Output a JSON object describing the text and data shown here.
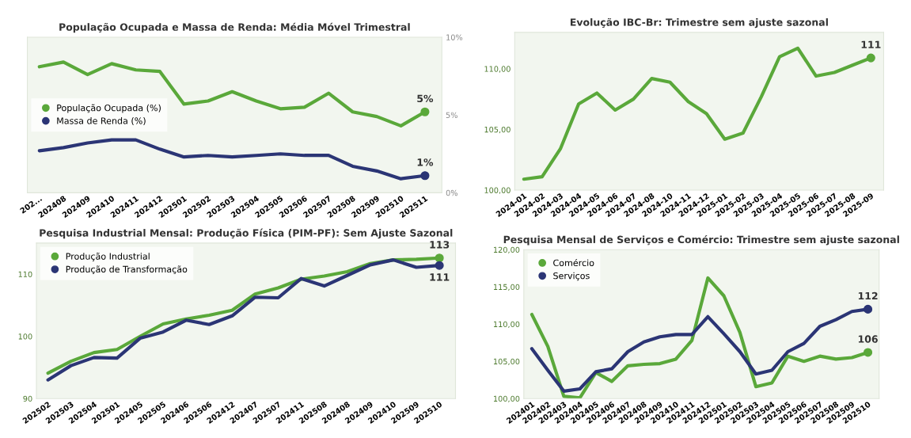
{
  "chart_data": [
    {
      "type": "line",
      "title": "População Ocupada e Massa de Renda: Média Móvel Trimestral",
      "categories": [
        "202...",
        "202408",
        "202409",
        "202410",
        "202411",
        "202412",
        "202501",
        "202502",
        "202503",
        "202504",
        "202505",
        "202506",
        "202507",
        "202508",
        "202509",
        "202510",
        "202511"
      ],
      "series": [
        {
          "name": "População Ocupada (%)",
          "color": "#5aa83a",
          "values": [
            8.1,
            8.4,
            7.6,
            8.3,
            7.9,
            7.8,
            5.7,
            5.9,
            6.5,
            5.9,
            5.4,
            5.5,
            6.4,
            5.2,
            4.9,
            4.3,
            5.2
          ],
          "value_labels": [
            null,
            null,
            null,
            null,
            null,
            null,
            null,
            null,
            null,
            null,
            null,
            null,
            null,
            null,
            null,
            null,
            "5%"
          ]
        },
        {
          "name": "Massa de Renda (%)",
          "color": "#2b3575",
          "values": [
            2.7,
            2.9,
            3.2,
            3.4,
            3.4,
            2.8,
            2.3,
            2.4,
            2.3,
            2.4,
            2.5,
            2.4,
            2.4,
            1.7,
            1.4,
            0.9,
            1.1
          ],
          "value_labels": [
            null,
            null,
            null,
            null,
            null,
            null,
            null,
            null,
            null,
            null,
            null,
            null,
            null,
            null,
            null,
            null,
            "1%"
          ]
        }
      ],
      "ylim": [
        0,
        10
      ],
      "yticks": [
        {
          "value": 0,
          "label": "0%"
        },
        {
          "value": 5,
          "label": "5%"
        },
        {
          "value": 10,
          "label": "10%"
        }
      ],
      "legend": "left",
      "grid": false
    },
    {
      "type": "line",
      "title": "Evolução IBC-Br: Trimestre sem ajuste sazonal",
      "categories": [
        "2024-01",
        "2024-02",
        "2024-03",
        "2024-04",
        "2024-05",
        "2024-06",
        "2024-07",
        "2024-08",
        "2024-10",
        "2024-11",
        "2024-12",
        "2025-01",
        "2025-02",
        "2025-03",
        "2025-04",
        "2025-05",
        "2025-06",
        "2025-07",
        "2025-08",
        "2025-09"
      ],
      "series": [
        {
          "color": "#5aa83a",
          "values": [
            100.9,
            101.1,
            103.4,
            107.1,
            108.0,
            106.6,
            107.5,
            109.2,
            108.9,
            107.3,
            106.3,
            104.2,
            104.7,
            107.7,
            111.0,
            111.7,
            109.4,
            109.7,
            110.3,
            110.9
          ],
          "value_labels": [
            null,
            null,
            null,
            null,
            null,
            null,
            null,
            null,
            null,
            null,
            null,
            null,
            null,
            null,
            null,
            null,
            null,
            null,
            null,
            "111"
          ]
        }
      ],
      "ylim": [
        100,
        113
      ],
      "yticks": [
        {
          "value": 100,
          "label": "100,00"
        },
        {
          "value": 105,
          "label": "105,00"
        },
        {
          "value": 110,
          "label": "110,00"
        }
      ],
      "grid": false
    },
    {
      "type": "line",
      "title": "Pesquisa Industrial Mensal: Produção Física (PIM-PF): Sem Ajuste Sazonal",
      "categories": [
        "202502",
        "202503",
        "202504",
        "202501",
        "202405",
        "202505",
        "202406",
        "202506",
        "202412",
        "202407",
        "202507",
        "202411",
        "202508",
        "202408",
        "202409",
        "202410",
        "202509",
        "202510"
      ],
      "series": [
        {
          "name": "Produção Industrial",
          "color": "#5aa83a",
          "values": [
            94.1,
            96.0,
            97.4,
            97.9,
            100.0,
            102.0,
            102.8,
            103.4,
            104.2,
            106.8,
            107.8,
            109.2,
            109.7,
            110.4,
            111.7,
            112.3,
            112.4,
            112.6
          ],
          "value_labels": [
            null,
            null,
            null,
            null,
            null,
            null,
            null,
            null,
            null,
            null,
            null,
            null,
            null,
            null,
            null,
            null,
            null,
            "113"
          ]
        },
        {
          "name": "Produção de Transformação",
          "color": "#2b3575",
          "values": [
            93.0,
            95.3,
            96.6,
            96.5,
            99.7,
            100.7,
            102.6,
            101.9,
            103.3,
            106.3,
            106.2,
            109.3,
            108.1,
            109.8,
            111.5,
            112.3,
            111.1,
            111.4
          ],
          "value_labels": [
            null,
            null,
            null,
            null,
            null,
            null,
            null,
            null,
            null,
            null,
            null,
            null,
            null,
            null,
            null,
            null,
            null,
            "111"
          ]
        }
      ],
      "ylim": [
        90,
        115
      ],
      "yticks": [
        90,
        100,
        110
      ],
      "legend": "top left",
      "grid": false
    },
    {
      "type": "line",
      "title": "Pesquisa Mensal de Serviços e Comércio: Trimestre sem ajuste sazonal",
      "categories": [
        "202401",
        "202402",
        "202403",
        "202404",
        "202405",
        "202406",
        "202407",
        "202408",
        "202409",
        "202410",
        "202411",
        "202412",
        "202501",
        "202502",
        "202503",
        "202504",
        "202505",
        "202506",
        "202507",
        "202508",
        "202509",
        "202510"
      ],
      "series": [
        {
          "name": "Comércio",
          "color": "#5aa83a",
          "values": [
            111.3,
            107.0,
            100.3,
            100.1,
            103.5,
            102.3,
            104.4,
            104.6,
            104.7,
            105.3,
            107.8,
            116.2,
            113.8,
            108.9,
            101.6,
            102.1,
            105.7,
            105.0,
            105.7,
            105.3,
            105.5,
            106.2
          ],
          "value_labels": [
            null,
            null,
            null,
            null,
            null,
            null,
            null,
            null,
            null,
            null,
            null,
            null,
            null,
            null,
            null,
            null,
            null,
            null,
            null,
            null,
            null,
            "106"
          ]
        },
        {
          "name": "Serviços",
          "color": "#2b3575",
          "values": [
            106.7,
            103.8,
            101.0,
            101.3,
            103.6,
            104.0,
            106.3,
            107.6,
            108.3,
            108.6,
            108.6,
            111.0,
            108.7,
            106.3,
            103.3,
            103.8,
            106.3,
            107.4,
            109.7,
            110.6,
            111.7,
            112.0
          ],
          "value_labels": [
            null,
            null,
            null,
            null,
            null,
            null,
            null,
            null,
            null,
            null,
            null,
            null,
            null,
            null,
            null,
            null,
            null,
            null,
            null,
            null,
            null,
            "112"
          ]
        }
      ],
      "ylim": [
        100,
        120
      ],
      "yticks": [
        {
          "value": 100,
          "label": "100,00"
        },
        {
          "value": 105,
          "label": "105,00"
        },
        {
          "value": 110,
          "label": "110,00"
        },
        {
          "value": 115,
          "label": "115,00"
        },
        {
          "value": 120,
          "label": "120,00"
        }
      ],
      "legend": "top left",
      "grid": false
    }
  ]
}
